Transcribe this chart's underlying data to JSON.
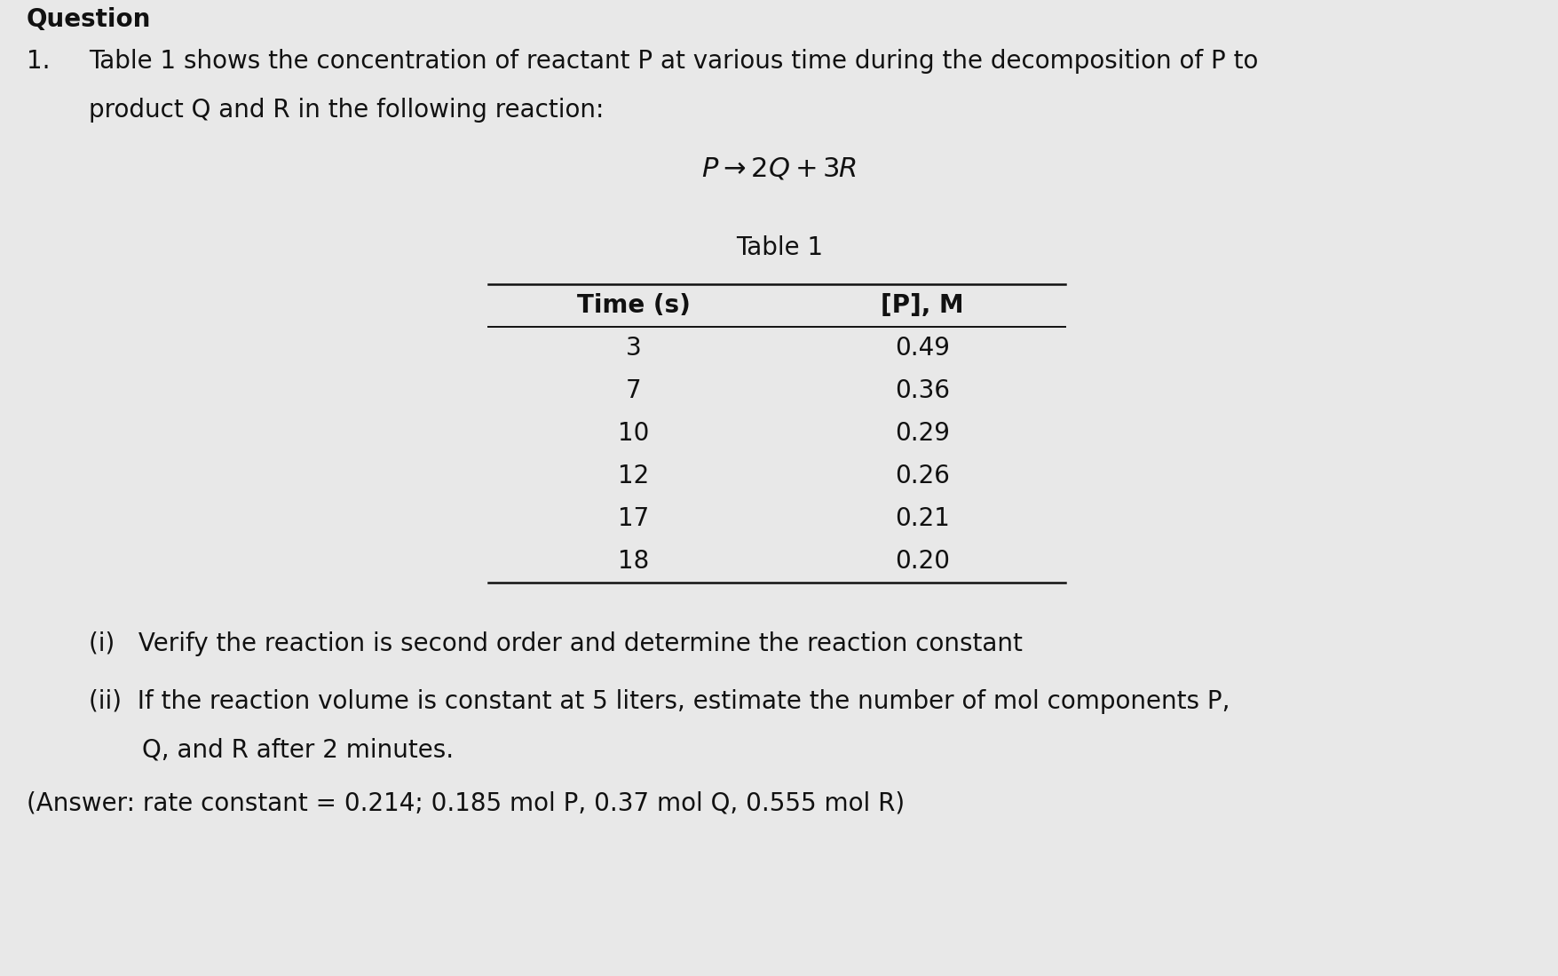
{
  "background_color": "#e8e8e8",
  "header_text": "Question",
  "question_number": "1.",
  "question_text": "Table 1 shows the concentration of reactant P at various time during the decomposition of P to",
  "question_text2": "product Q and R in the following reaction:",
  "reaction_equation": "$P \\rightarrow 2Q + 3R$",
  "table_title": "Table 1",
  "col1_header": "Time (s)",
  "col2_header": "[P], M",
  "time_values": [
    3,
    7,
    10,
    12,
    17,
    18
  ],
  "concentration_values": [
    "0.49",
    "0.36",
    "0.29",
    "0.26",
    "0.21",
    "0.20"
  ],
  "part_i": "(i)   Verify the reaction is second order and determine the reaction constant",
  "part_ii_line1": "(ii)  If the reaction volume is constant at 5 liters, estimate the number of mol components P,",
  "part_ii_line2": "Q, and R after 2 minutes.",
  "answer_text": "(Answer: rate constant = 0.214; 0.185 mol P, 0.37 mol Q, 0.555 mol R)",
  "text_color": "#111111",
  "header_fontsize": 20,
  "body_fontsize": 20,
  "table_fontsize": 20
}
